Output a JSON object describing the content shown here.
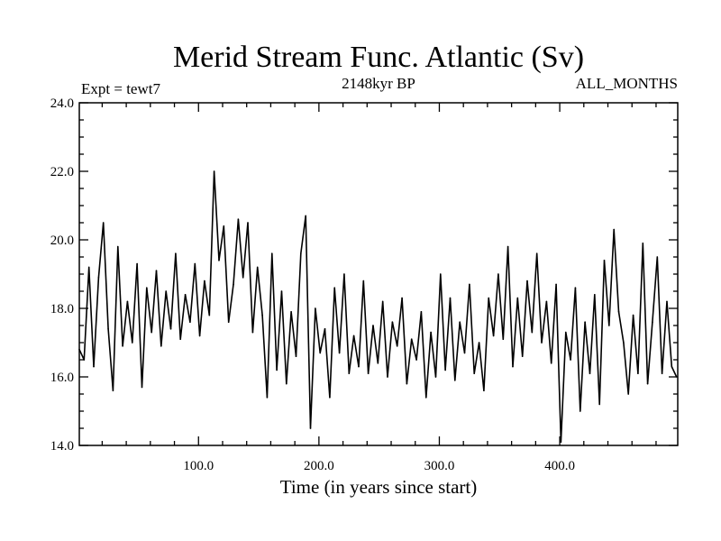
{
  "chart_data": {
    "type": "line",
    "title": "Merid Stream Func. Atlantic (Sv)",
    "subtitle_left": "Expt = tewt7",
    "subtitle_center": "2148kyr BP",
    "subtitle_right": "ALL_MONTHS",
    "xlabel": "Time (in years since start)",
    "ylabel": "",
    "xlim": [
      1,
      498
    ],
    "ylim": [
      14.0,
      24.0
    ],
    "x_ticks": [
      100,
      200,
      300,
      400
    ],
    "x_tick_labels": [
      "100.0",
      "200.0",
      "300.0",
      "400.0"
    ],
    "y_ticks": [
      14,
      16,
      18,
      20,
      22,
      24
    ],
    "y_tick_labels": [
      "14.0",
      "16.0",
      "18.0",
      "20.0",
      "22.0",
      "24.0"
    ],
    "grid": false,
    "series": [
      {
        "name": "Merid Stream Func. Atlantic",
        "x": [
          1,
          5,
          9,
          13,
          17,
          21,
          25,
          29,
          33,
          37,
          41,
          45,
          49,
          53,
          57,
          61,
          65,
          69,
          73,
          77,
          81,
          85,
          89,
          93,
          97,
          101,
          105,
          109,
          113,
          117,
          121,
          125,
          129,
          133,
          137,
          141,
          145,
          149,
          153,
          157,
          161,
          165,
          169,
          173,
          177,
          181,
          185,
          189,
          193,
          197,
          201,
          205,
          209,
          213,
          217,
          221,
          225,
          229,
          233,
          237,
          241,
          245,
          249,
          253,
          257,
          261,
          265,
          269,
          273,
          277,
          281,
          285,
          289,
          293,
          297,
          301,
          305,
          309,
          313,
          317,
          321,
          325,
          329,
          333,
          337,
          341,
          345,
          349,
          353,
          357,
          361,
          365,
          369,
          373,
          377,
          381,
          385,
          389,
          393,
          397,
          401,
          405,
          409,
          413,
          417,
          421,
          425,
          429,
          433,
          437,
          441,
          445,
          449,
          453,
          457,
          461,
          465,
          469,
          473,
          477,
          481,
          485,
          489,
          493,
          497
        ],
        "values": [
          16.8,
          16.5,
          19.2,
          16.3,
          18.9,
          20.5,
          17.4,
          15.6,
          19.8,
          16.9,
          18.2,
          17.0,
          19.3,
          15.7,
          18.6,
          17.3,
          19.1,
          16.9,
          18.5,
          17.4,
          19.6,
          17.1,
          18.4,
          17.6,
          19.3,
          17.2,
          18.8,
          17.8,
          22.0,
          19.4,
          20.4,
          17.6,
          18.7,
          20.6,
          18.9,
          20.5,
          17.3,
          19.2,
          17.8,
          15.4,
          19.6,
          16.2,
          18.5,
          15.8,
          17.9,
          16.6,
          19.6,
          20.7,
          14.5,
          18.0,
          16.7,
          17.4,
          15.4,
          18.6,
          16.7,
          19.0,
          16.1,
          17.2,
          16.3,
          18.8,
          16.1,
          17.5,
          16.4,
          18.2,
          16.0,
          17.6,
          16.9,
          18.3,
          15.8,
          17.1,
          16.5,
          17.9,
          15.4,
          17.3,
          16.0,
          19.0,
          16.2,
          18.3,
          15.9,
          17.6,
          16.7,
          18.7,
          16.1,
          17.0,
          15.6,
          18.3,
          17.2,
          19.0,
          17.1,
          19.8,
          16.3,
          18.3,
          16.6,
          18.8,
          17.3,
          19.6,
          17.0,
          18.2,
          16.4,
          18.7,
          14.1,
          17.3,
          16.5,
          18.6,
          15.0,
          17.6,
          16.1,
          18.4,
          15.2,
          19.4,
          17.5,
          20.3,
          17.9,
          17.0,
          15.5,
          17.8,
          16.1,
          19.9,
          15.8,
          17.6,
          19.5,
          16.1,
          18.2,
          16.3,
          16.0
        ]
      }
    ]
  }
}
